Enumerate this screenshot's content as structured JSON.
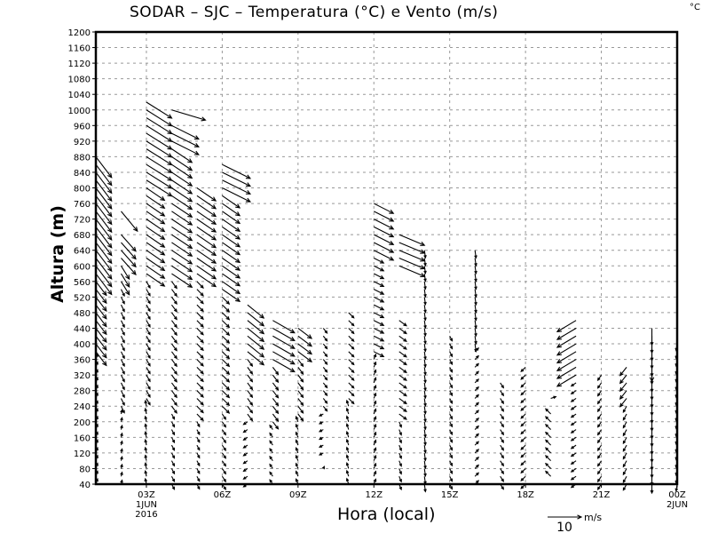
{
  "chart_data": {
    "type": "vector",
    "title": "SODAR – SJC – Temperatura (°C) e Vento (m/s)",
    "corner_unit": "°C",
    "xlabel": "Hora (local)",
    "ylabel": "Altura (m)",
    "ylim": [
      40,
      1200
    ],
    "xlim_hours": [
      1,
      24
    ],
    "y_ticks": [
      40,
      80,
      120,
      160,
      200,
      240,
      280,
      320,
      360,
      400,
      440,
      480,
      520,
      560,
      600,
      640,
      680,
      720,
      760,
      800,
      840,
      880,
      920,
      960,
      1000,
      1040,
      1080,
      1120,
      1160,
      1200
    ],
    "x_ticks": [
      {
        "hour": 3,
        "label": "03Z",
        "sub": [
          "1JUN",
          "2016"
        ]
      },
      {
        "hour": 6,
        "label": "06Z",
        "sub": []
      },
      {
        "hour": 9,
        "label": "09Z",
        "sub": []
      },
      {
        "hour": 12,
        "label": "12Z",
        "sub": []
      },
      {
        "hour": 15,
        "label": "15Z",
        "sub": []
      },
      {
        "hour": 18,
        "label": "18Z",
        "sub": []
      },
      {
        "hour": 21,
        "label": "21Z",
        "sub": []
      },
      {
        "hour": 24,
        "label": "00Z",
        "sub": [
          "2JUN"
        ]
      }
    ],
    "grid": true,
    "level_step_m": 20,
    "legend": {
      "speed": 10,
      "label": "10",
      "unit": "m/s",
      "placement": "bottom-right"
    },
    "columns": [
      {
        "hour": 1,
        "bands": [
          {
            "from": 40,
            "to": 360,
            "u": 0.5,
            "v": 1.5
          },
          {
            "from": 380,
            "to": 560,
            "u": 3,
            "v": -4
          },
          {
            "from": 580,
            "to": 880,
            "u": 4.5,
            "v": -6
          }
        ]
      },
      {
        "hour": 2,
        "bands": [
          {
            "from": 40,
            "to": 220,
            "u": 0.3,
            "v": 1.2
          },
          {
            "from": 240,
            "to": 540,
            "u": 1,
            "v": -2
          },
          {
            "from": 560,
            "to": 600,
            "u": 2.5,
            "v": -4
          },
          {
            "from": 620,
            "to": 680,
            "u": 4.5,
            "v": -5
          },
          {
            "from": 740,
            "to": 740,
            "u": 5,
            "v": -6
          }
        ]
      },
      {
        "hour": 3,
        "bands": [
          {
            "from": 40,
            "to": 240,
            "u": -0.3,
            "v": 1.5
          },
          {
            "from": 260,
            "to": 560,
            "u": 1,
            "v": -1.8
          },
          {
            "from": 580,
            "to": 800,
            "u": 5,
            "v": -3.5
          },
          {
            "from": 820,
            "to": 1020,
            "u": 7,
            "v": -4.5
          }
        ]
      },
      {
        "hour": 4,
        "bands": [
          {
            "from": 40,
            "to": 220,
            "u": 0.8,
            "v": -1.5
          },
          {
            "from": 240,
            "to": 560,
            "u": 1.5,
            "v": -2
          },
          {
            "from": 580,
            "to": 900,
            "u": 6,
            "v": -4
          },
          {
            "from": 920,
            "to": 960,
            "u": 8,
            "v": -4
          },
          {
            "from": 1000,
            "to": 1000,
            "u": 10,
            "v": -3
          }
        ]
      },
      {
        "hour": 5,
        "bands": [
          {
            "from": 40,
            "to": 200,
            "u": 0.8,
            "v": -1.5
          },
          {
            "from": 220,
            "to": 560,
            "u": 2,
            "v": -2
          },
          {
            "from": 580,
            "to": 800,
            "u": 6,
            "v": -4
          }
        ]
      },
      {
        "hour": 6,
        "bands": [
          {
            "from": 40,
            "to": 220,
            "u": 1,
            "v": -1.5
          },
          {
            "from": 240,
            "to": 520,
            "u": 2,
            "v": -2
          },
          {
            "from": 540,
            "to": 780,
            "u": 5,
            "v": -3.5
          },
          {
            "from": 800,
            "to": 860,
            "u": 8,
            "v": -4
          }
        ]
      },
      {
        "hour": 7,
        "bands": [
          {
            "from": 40,
            "to": 200,
            "u": -1.2,
            "v": -0.8
          },
          {
            "from": 220,
            "to": 360,
            "u": 1.5,
            "v": -2
          },
          {
            "from": 380,
            "to": 500,
            "u": 5,
            "v": -4
          }
        ]
      },
      {
        "hour": 8,
        "bands": [
          {
            "from": 40,
            "to": 180,
            "u": -0.8,
            "v": 1.2
          },
          {
            "from": 200,
            "to": 340,
            "u": 1.5,
            "v": -2
          },
          {
            "from": 360,
            "to": 460,
            "u": 6,
            "v": -3.5
          }
        ]
      },
      {
        "hour": 9,
        "bands": [
          {
            "from": 40,
            "to": 200,
            "u": -0.6,
            "v": 1.5
          },
          {
            "from": 220,
            "to": 360,
            "u": 1.5,
            "v": -2
          },
          {
            "from": 380,
            "to": 440,
            "u": 4,
            "v": -3
          }
        ]
      },
      {
        "hour": 10,
        "bands": [
          {
            "from": 80,
            "to": 80,
            "u": 0.3,
            "v": 0.6
          },
          {
            "from": 120,
            "to": 220,
            "u": -1.2,
            "v": -0.6
          },
          {
            "from": 240,
            "to": 440,
            "u": 1.2,
            "v": -1.5
          }
        ]
      },
      {
        "hour": 11,
        "bands": [
          {
            "from": 40,
            "to": 240,
            "u": -0.5,
            "v": 1.6
          },
          {
            "from": 260,
            "to": 480,
            "u": 1.5,
            "v": -1.5
          }
        ]
      },
      {
        "hour": 12,
        "bands": [
          {
            "from": 40,
            "to": 360,
            "u": 0.6,
            "v": 1.5
          },
          {
            "from": 380,
            "to": 620,
            "u": 3,
            "v": -1.5
          },
          {
            "from": 640,
            "to": 760,
            "u": 6,
            "v": -3
          }
        ]
      },
      {
        "hour": 13,
        "bands": [
          {
            "from": 40,
            "to": 200,
            "u": 0.6,
            "v": -1.5
          },
          {
            "from": 220,
            "to": 460,
            "u": 2,
            "v": -1.5
          },
          {
            "from": 600,
            "to": 680,
            "u": 7,
            "v": -3
          }
        ]
      },
      {
        "hour": 14,
        "bands": [
          {
            "from": 40,
            "to": 640,
            "u": 0.3,
            "v": -2.2
          }
        ]
      },
      {
        "hour": 15,
        "bands": [
          {
            "from": 40,
            "to": 420,
            "u": 0.8,
            "v": -1.5
          }
        ]
      },
      {
        "hour": 16,
        "bands": [
          {
            "from": 40,
            "to": 380,
            "u": 1,
            "v": 1
          },
          {
            "from": 400,
            "to": 640,
            "u": 0.3,
            "v": -2.2
          }
        ]
      },
      {
        "hour": 17,
        "bands": [
          {
            "from": 40,
            "to": 300,
            "u": 1,
            "v": -1.5
          }
        ]
      },
      {
        "hour": 18,
        "bands": [
          {
            "from": 40,
            "to": 340,
            "u": -1.2,
            "v": -1.2
          }
        ]
      },
      {
        "hour": 19,
        "bands": [
          {
            "from": 60,
            "to": 220,
            "u": -1.5,
            "v": 1.5
          },
          {
            "from": 260,
            "to": 260,
            "u": 1.5,
            "v": 0.5
          }
        ]
      },
      {
        "hour": 20,
        "bands": [
          {
            "from": 40,
            "to": 300,
            "u": -1.5,
            "v": -1
          },
          {
            "from": 320,
            "to": 460,
            "u": -6,
            "v": -3.5
          }
        ]
      },
      {
        "hour": 21,
        "bands": [
          {
            "from": 40,
            "to": 320,
            "u": -1,
            "v": -1.5
          }
        ]
      },
      {
        "hour": 22,
        "bands": [
          {
            "from": 40,
            "to": 240,
            "u": -1,
            "v": -1.8
          },
          {
            "from": 260,
            "to": 340,
            "u": -2,
            "v": -2.5
          }
        ]
      },
      {
        "hour": 23,
        "bands": [
          {
            "from": 40,
            "to": 420,
            "u": 0,
            "v": -2.5
          },
          {
            "from": 440,
            "to": 440,
            "u": 0,
            "v": -15
          }
        ]
      },
      {
        "hour": 24,
        "bands": [
          {
            "from": 40,
            "to": 400,
            "u": -0.3,
            "v": -2
          }
        ]
      }
    ]
  }
}
